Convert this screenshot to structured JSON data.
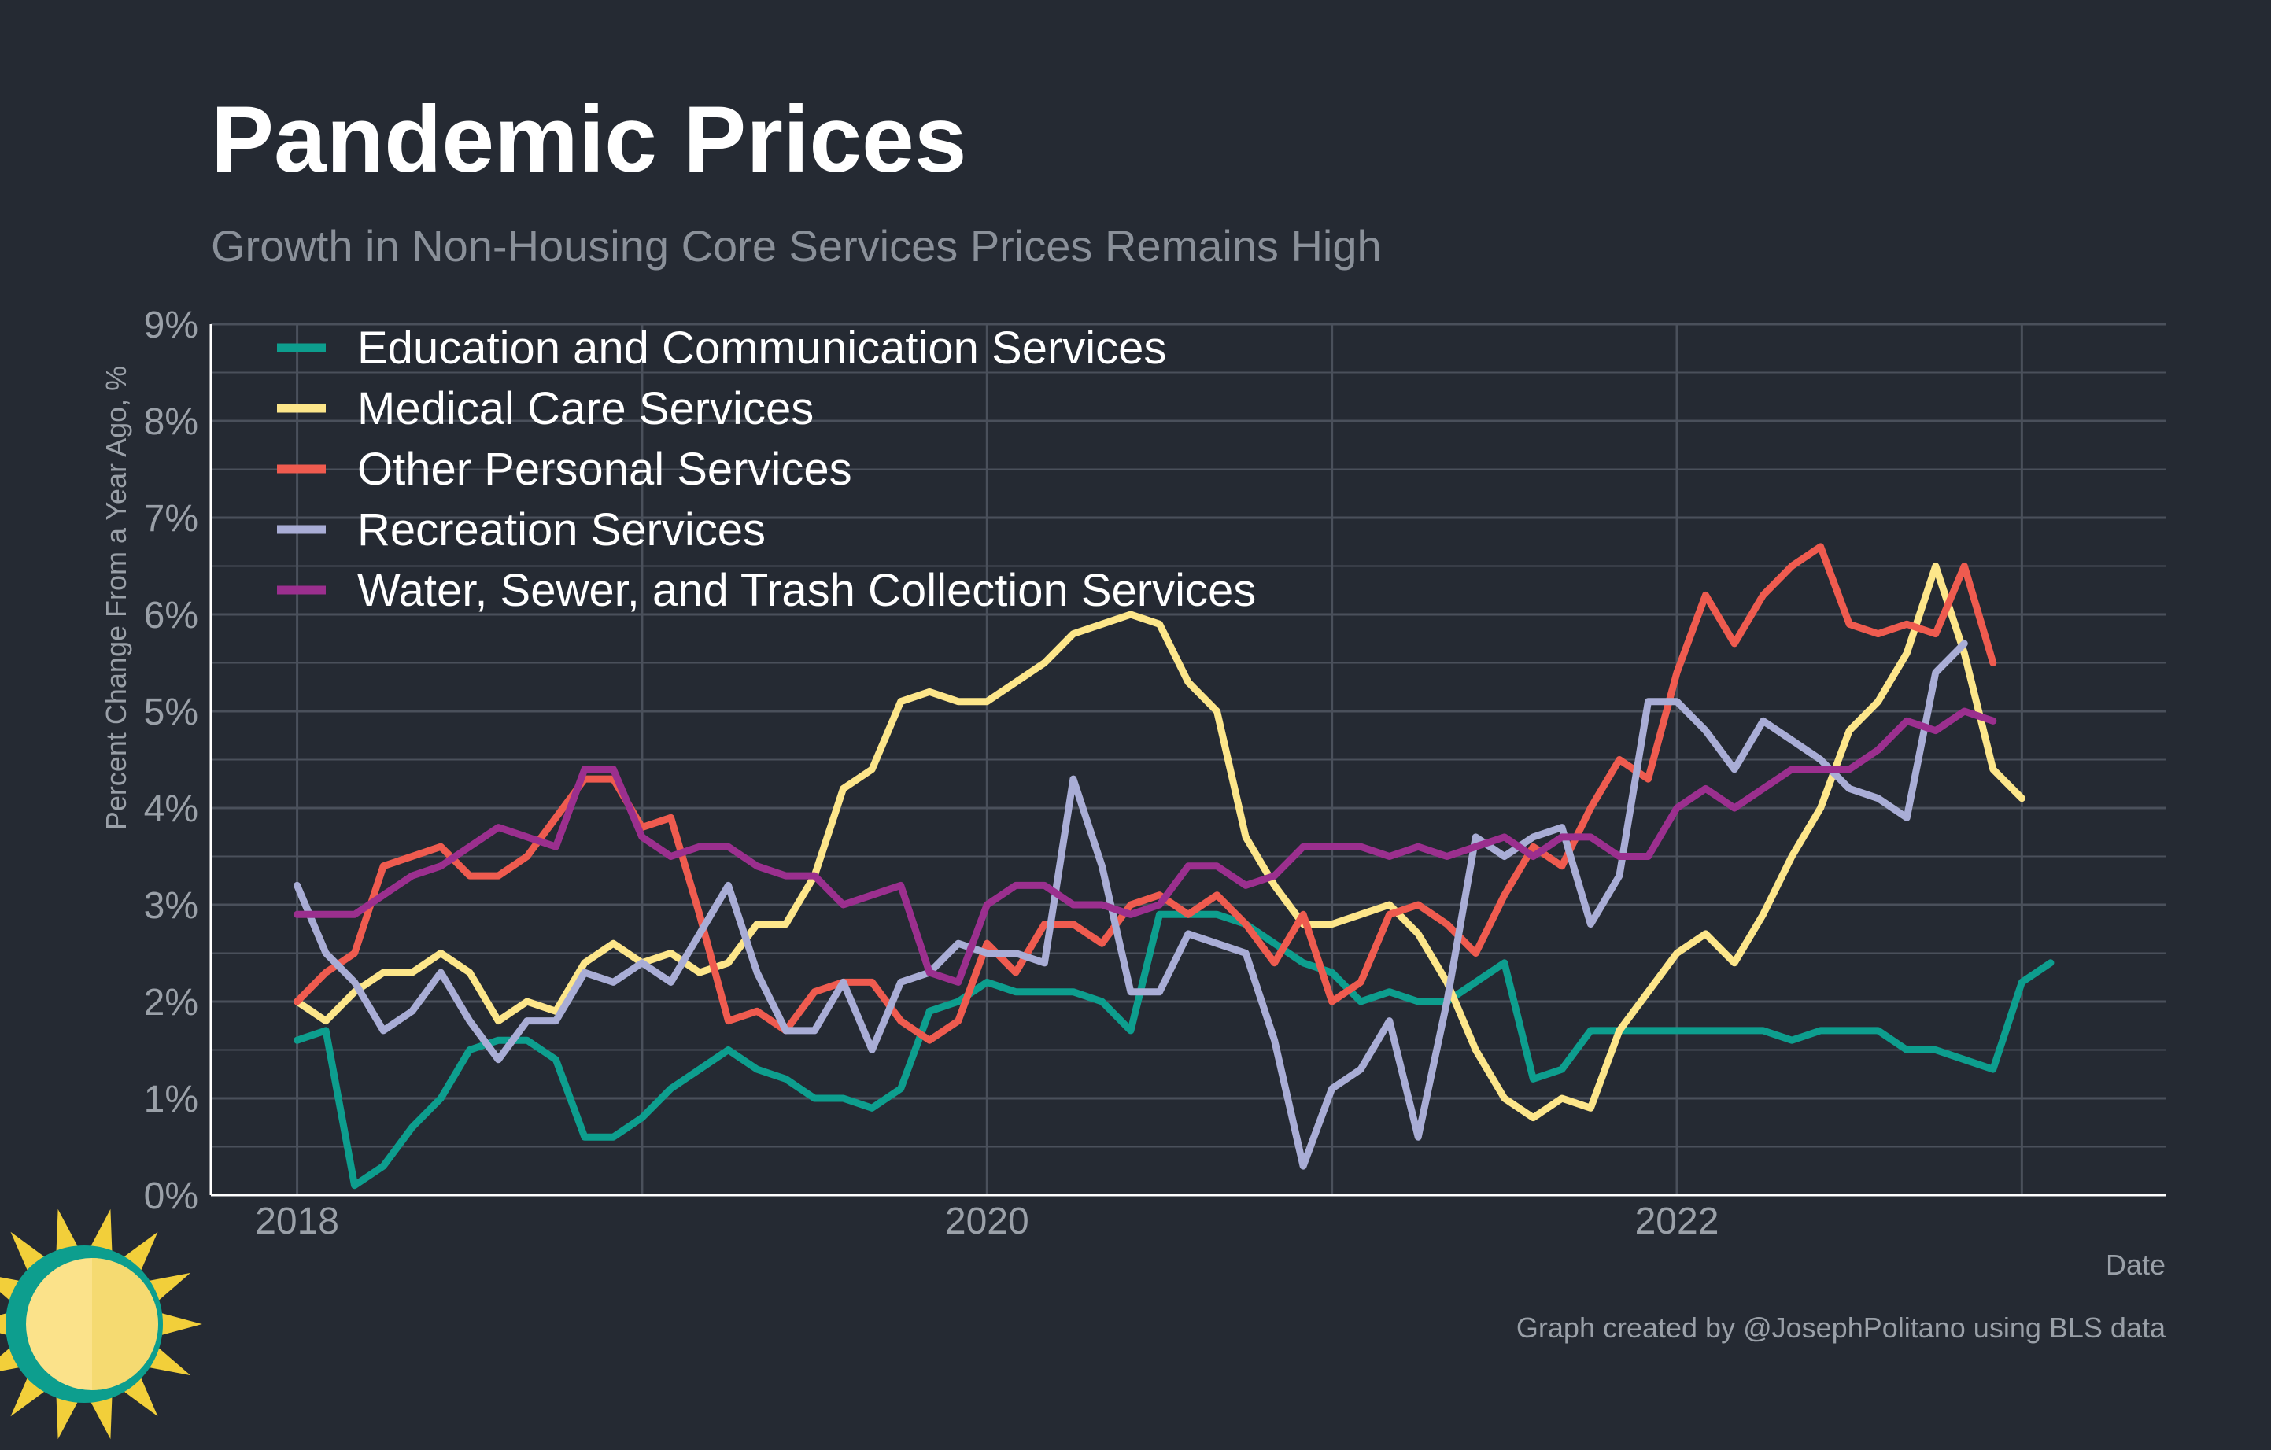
{
  "title": "Pandemic Prices",
  "subtitle": "Growth in Non-Housing Core Services Prices Remains High",
  "caption": "Graph created by @JosephPolitano using BLS data",
  "colors": {
    "background": "#252a33",
    "grid": "#4a505b",
    "axis": "#ffffff"
  },
  "chart_data": {
    "type": "line",
    "xlabel": "Date",
    "ylabel": "Percent Change From a Year Ago, %",
    "xlim": [
      "2017-10",
      "2023-06"
    ],
    "ylim": [
      0,
      9
    ],
    "y_ticks": [
      "0%",
      "1%",
      "2%",
      "3%",
      "4%",
      "5%",
      "6%",
      "7%",
      "8%",
      "9%"
    ],
    "x_ticks": [
      "2018",
      "2020",
      "2022"
    ],
    "grid": true,
    "legend_position": "top-left",
    "x_start": "2018-01",
    "x_frequency": "monthly",
    "series": [
      {
        "name": "Education and Communication Services",
        "color": "#0d9e8e",
        "values": [
          1.6,
          1.7,
          0.1,
          0.3,
          0.7,
          1.0,
          1.5,
          1.6,
          1.6,
          1.4,
          0.6,
          0.6,
          0.8,
          1.1,
          1.3,
          1.5,
          1.3,
          1.2,
          1.0,
          1.0,
          0.9,
          1.1,
          1.9,
          2.0,
          2.2,
          2.1,
          2.1,
          2.1,
          2.0,
          1.7,
          2.9,
          2.9,
          2.9,
          2.8,
          2.6,
          2.4,
          2.3,
          2.0,
          2.1,
          2.0,
          2.0,
          2.2,
          2.4,
          1.2,
          1.3,
          1.7,
          1.7,
          1.7,
          1.7,
          1.7,
          1.7,
          1.7,
          1.6,
          1.7,
          1.7,
          1.7,
          1.5,
          1.5,
          1.4,
          1.3,
          2.2,
          2.4
        ]
      },
      {
        "name": "Medical Care Services",
        "color": "#fde68a",
        "values": [
          2.0,
          1.8,
          2.1,
          2.3,
          2.3,
          2.5,
          2.3,
          1.8,
          2.0,
          1.9,
          2.4,
          2.6,
          2.4,
          2.5,
          2.3,
          2.4,
          2.8,
          2.8,
          3.3,
          4.2,
          4.4,
          5.1,
          5.2,
          5.1,
          5.1,
          5.3,
          5.5,
          5.8,
          5.9,
          6.0,
          5.9,
          5.3,
          5.0,
          3.7,
          3.2,
          2.8,
          2.8,
          2.9,
          3.0,
          2.7,
          2.2,
          1.5,
          1.0,
          0.8,
          1.0,
          0.9,
          1.7,
          2.1,
          2.5,
          2.7,
          2.4,
          2.9,
          3.5,
          4.0,
          4.8,
          5.1,
          5.6,
          6.5,
          5.6,
          4.4,
          4.1
        ]
      },
      {
        "name": "Other Personal Services",
        "color": "#ef5b4f",
        "values": [
          2.0,
          2.3,
          2.5,
          3.4,
          3.5,
          3.6,
          3.3,
          3.3,
          3.5,
          3.9,
          4.3,
          4.3,
          3.8,
          3.9,
          2.9,
          1.8,
          1.9,
          1.7,
          2.1,
          2.2,
          2.2,
          1.8,
          1.6,
          1.8,
          2.6,
          2.3,
          2.8,
          2.8,
          2.6,
          3.0,
          3.1,
          2.9,
          3.1,
          2.8,
          2.4,
          2.9,
          2.0,
          2.2,
          2.9,
          3.0,
          2.8,
          2.5,
          3.1,
          3.6,
          3.4,
          4.0,
          4.5,
          4.3,
          5.4,
          6.2,
          5.7,
          6.2,
          6.5,
          6.7,
          5.9,
          5.8,
          5.9,
          5.8,
          6.5,
          5.5
        ]
      },
      {
        "name": "Recreation Services",
        "color": "#a9add6",
        "values": [
          3.2,
          2.5,
          2.2,
          1.7,
          1.9,
          2.3,
          1.8,
          1.4,
          1.8,
          1.8,
          2.3,
          2.2,
          2.4,
          2.2,
          2.7,
          3.2,
          2.3,
          1.7,
          1.7,
          2.2,
          1.5,
          2.2,
          2.3,
          2.6,
          2.5,
          2.5,
          2.4,
          4.3,
          3.4,
          2.1,
          2.1,
          2.7,
          2.6,
          2.5,
          1.6,
          0.3,
          1.1,
          1.3,
          1.8,
          0.6,
          2.0,
          3.7,
          3.5,
          3.7,
          3.8,
          2.8,
          3.3,
          5.1,
          5.1,
          4.8,
          4.4,
          4.9,
          4.7,
          4.5,
          4.2,
          4.1,
          3.9,
          5.4,
          5.7
        ]
      },
      {
        "name": "Water, Sewer, and Trash Collection Services",
        "color": "#9b2f8e",
        "values": [
          2.9,
          2.9,
          2.9,
          3.1,
          3.3,
          3.4,
          3.6,
          3.8,
          3.7,
          3.6,
          4.4,
          4.4,
          3.7,
          3.5,
          3.6,
          3.6,
          3.4,
          3.3,
          3.3,
          3.0,
          3.1,
          3.2,
          2.3,
          2.2,
          3.0,
          3.2,
          3.2,
          3.0,
          3.0,
          2.9,
          3.0,
          3.4,
          3.4,
          3.2,
          3.3,
          3.6,
          3.6,
          3.6,
          3.5,
          3.6,
          3.5,
          3.6,
          3.7,
          3.5,
          3.7,
          3.7,
          3.5,
          3.5,
          4.0,
          4.2,
          4.0,
          4.2,
          4.4,
          4.4,
          4.4,
          4.6,
          4.9,
          4.8,
          5.0,
          4.9
        ]
      }
    ]
  }
}
